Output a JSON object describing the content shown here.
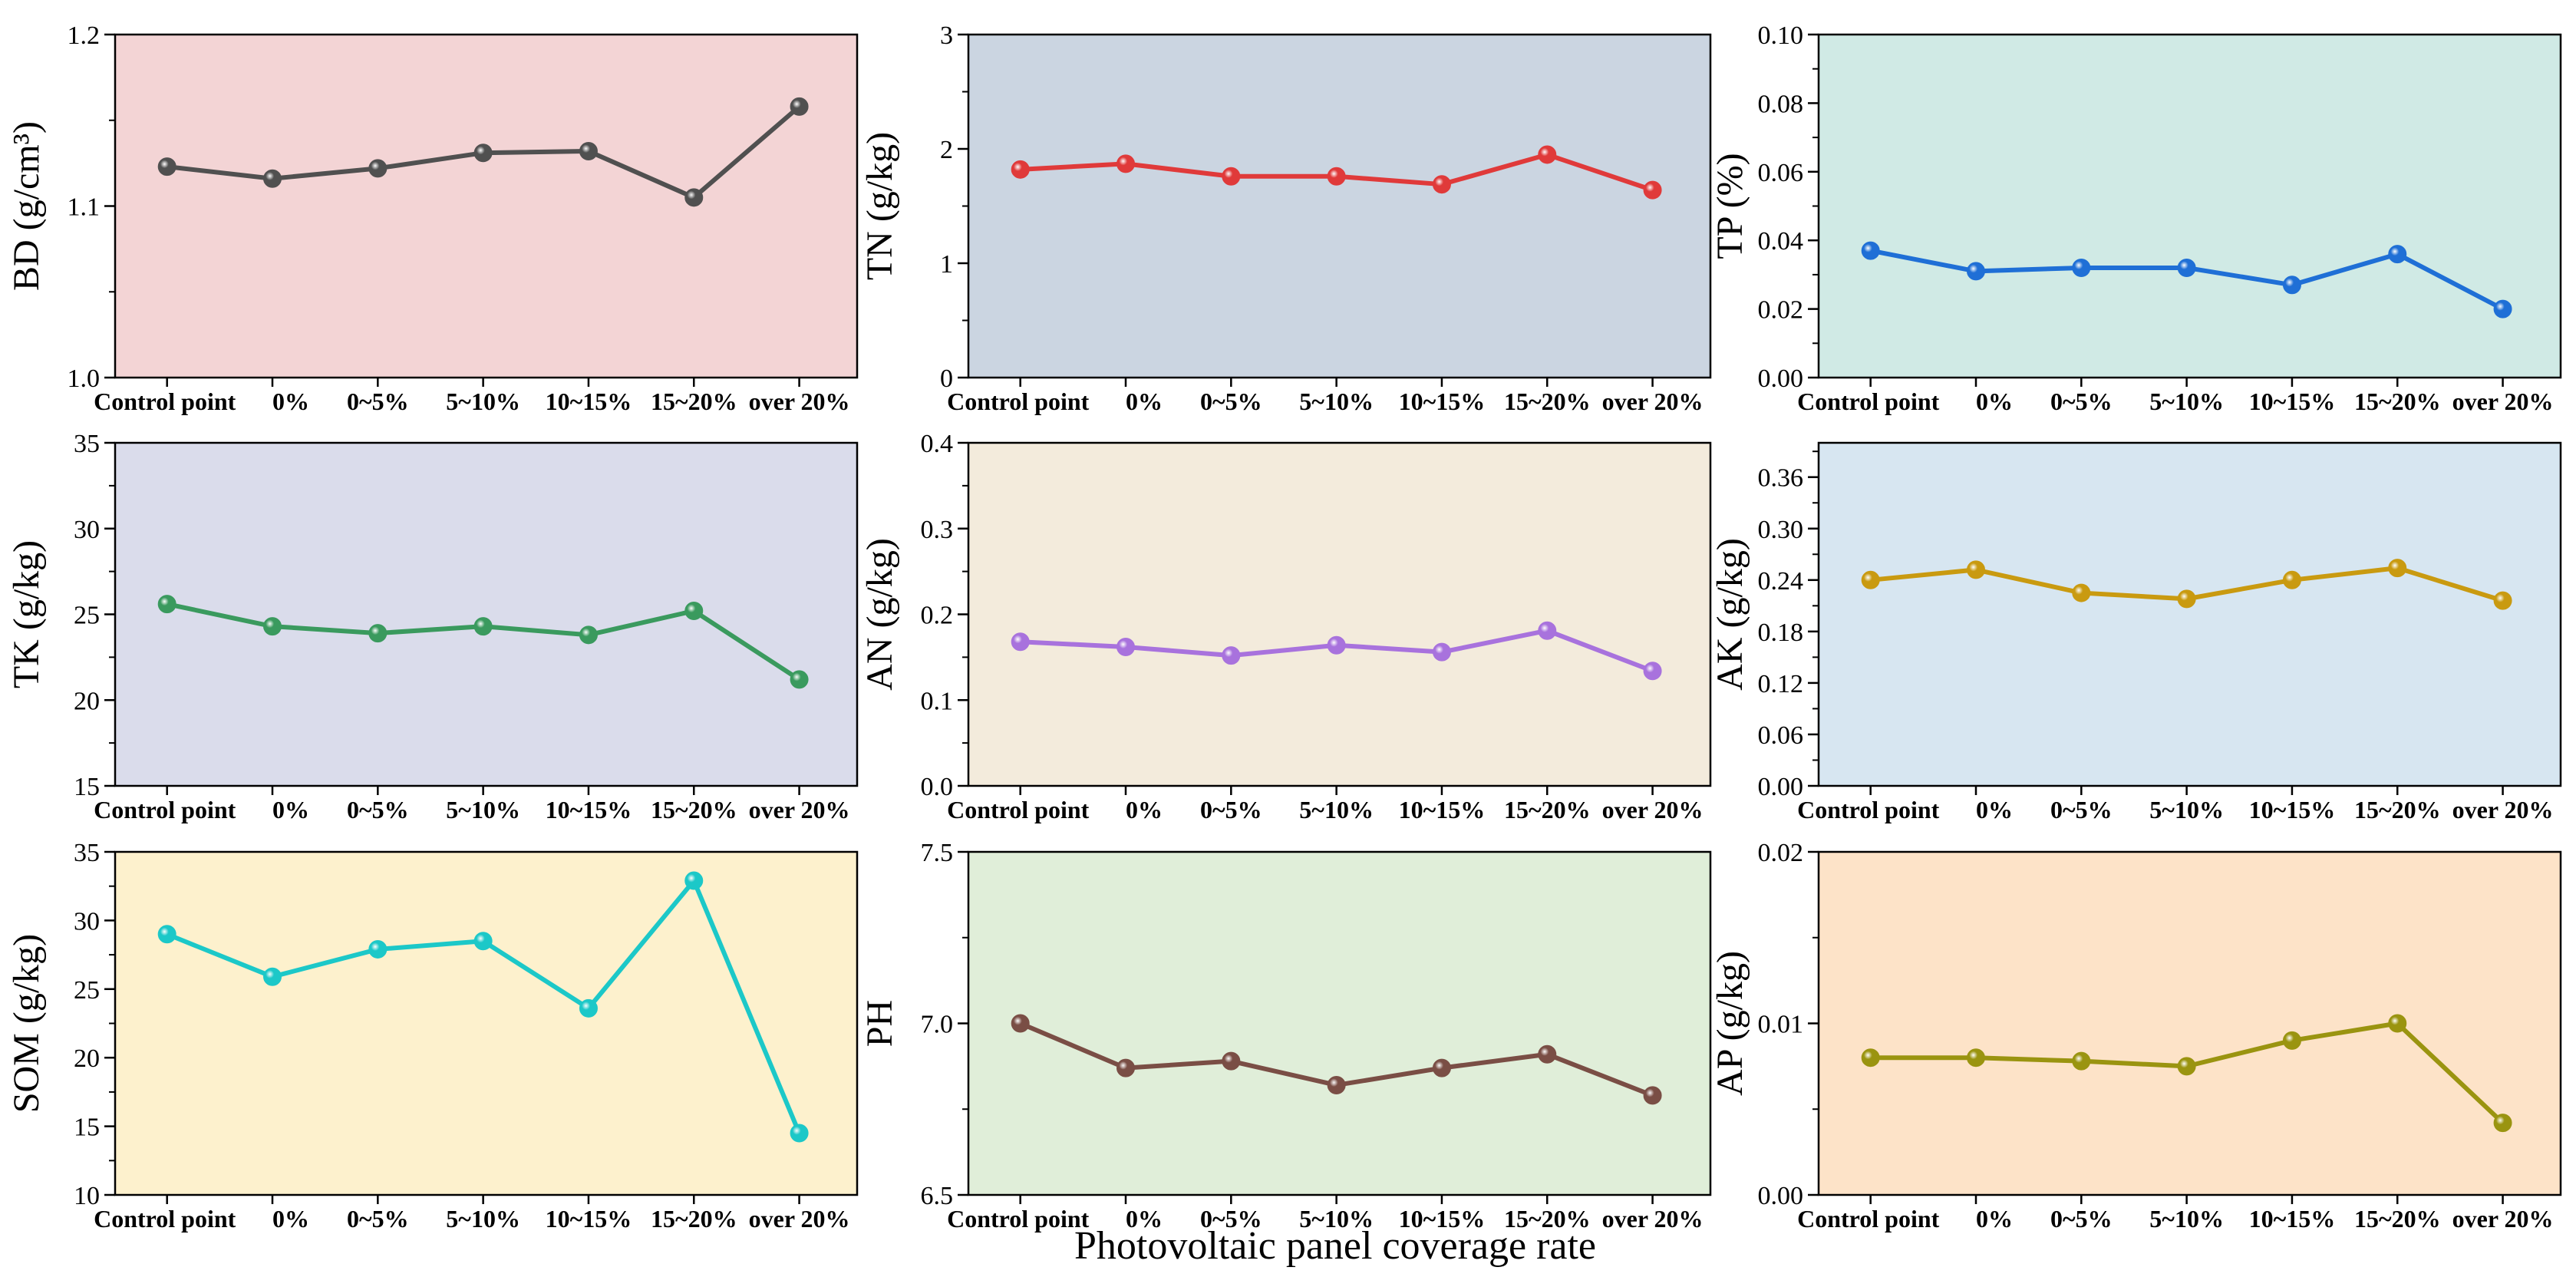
{
  "figure": {
    "xlabel": "Photovoltaic panel coverage rate"
  },
  "chart_data": [
    {
      "type": "line",
      "id": "bd",
      "ylabel": "BD (g/cm³)",
      "bg": "#f3d4d5",
      "color": "#505050",
      "categories": [
        "Control point",
        "0%",
        "0~5%",
        "5~10%",
        "10~15%",
        "15~20%",
        "over 20%"
      ],
      "values": [
        1.123,
        1.116,
        1.122,
        1.131,
        1.132,
        1.105,
        1.158
      ],
      "ylim": [
        1.0,
        1.2
      ],
      "yticks": [
        {
          "v": 1.0,
          "label": "1.0"
        },
        {
          "v": 1.1,
          "label": "1.1"
        },
        {
          "v": 1.2,
          "label": "1.2"
        }
      ],
      "minor": [
        1.05,
        1.15
      ]
    },
    {
      "type": "line",
      "id": "tn",
      "ylabel": "TN (g/kg)",
      "bg": "#cbd5e1",
      "color": "#e03a3a",
      "categories": [
        "Control point",
        "0%",
        "0~5%",
        "5~10%",
        "10~15%",
        "15~20%",
        "over 20%"
      ],
      "values": [
        1.82,
        1.87,
        1.76,
        1.76,
        1.69,
        1.95,
        1.64
      ],
      "ylim": [
        0,
        3
      ],
      "yticks": [
        {
          "v": 0,
          "label": "0"
        },
        {
          "v": 1,
          "label": "1"
        },
        {
          "v": 2,
          "label": "2"
        },
        {
          "v": 3,
          "label": "3"
        }
      ],
      "minor": [
        0.5,
        1.5,
        2.5
      ]
    },
    {
      "type": "line",
      "id": "tp",
      "ylabel": "TP (%)",
      "bg": "#d0eae5",
      "color": "#1f6fd6",
      "categories": [
        "Control point",
        "0%",
        "0~5%",
        "5~10%",
        "10~15%",
        "15~20%",
        "over 20%"
      ],
      "values": [
        0.037,
        0.031,
        0.032,
        0.032,
        0.027,
        0.036,
        0.02
      ],
      "ylim": [
        0,
        0.1
      ],
      "yticks": [
        {
          "v": 0.0,
          "label": "0.00"
        },
        {
          "v": 0.02,
          "label": "0.02"
        },
        {
          "v": 0.04,
          "label": "0.04"
        },
        {
          "v": 0.06,
          "label": "0.06"
        },
        {
          "v": 0.08,
          "label": "0.08"
        },
        {
          "v": 0.1,
          "label": "0.10"
        }
      ],
      "minor": [
        0.01,
        0.03,
        0.05,
        0.07,
        0.09
      ]
    },
    {
      "type": "line",
      "id": "tk",
      "ylabel": "TK (g/kg)",
      "bg": "#dadceb",
      "color": "#3a9a5e",
      "categories": [
        "Control point",
        "0%",
        "0~5%",
        "5~10%",
        "10~15%",
        "15~20%",
        "over 20%"
      ],
      "values": [
        25.6,
        24.3,
        23.9,
        24.3,
        23.8,
        25.2,
        21.2
      ],
      "ylim": [
        15,
        35
      ],
      "yticks": [
        {
          "v": 15,
          "label": "15"
        },
        {
          "v": 20,
          "label": "20"
        },
        {
          "v": 25,
          "label": "25"
        },
        {
          "v": 30,
          "label": "30"
        },
        {
          "v": 35,
          "label": "35"
        }
      ],
      "minor": [
        17.5,
        22.5,
        27.5,
        32.5
      ]
    },
    {
      "type": "line",
      "id": "an",
      "ylabel": "AN (g/kg)",
      "bg": "#f3ebdc",
      "color": "#a872dd",
      "categories": [
        "Control point",
        "0%",
        "0~5%",
        "5~10%",
        "10~15%",
        "15~20%",
        "over 20%"
      ],
      "values": [
        0.168,
        0.162,
        0.152,
        0.164,
        0.156,
        0.181,
        0.134
      ],
      "ylim": [
        0,
        0.4
      ],
      "yticks": [
        {
          "v": 0,
          "label": "0.0"
        },
        {
          "v": 0.1,
          "label": "0.1"
        },
        {
          "v": 0.2,
          "label": "0.2"
        },
        {
          "v": 0.3,
          "label": "0.3"
        },
        {
          "v": 0.4,
          "label": "0.4"
        }
      ],
      "minor": [
        0.05,
        0.15,
        0.25,
        0.35
      ]
    },
    {
      "type": "line",
      "id": "ak",
      "ylabel": "AK (g/kg)",
      "bg": "#d7e6f1",
      "color": "#c99a10",
      "categories": [
        "Control point",
        "0%",
        "0~5%",
        "5~10%",
        "10~15%",
        "15~20%",
        "over 20%"
      ],
      "values": [
        0.24,
        0.252,
        0.225,
        0.218,
        0.24,
        0.254,
        0.216
      ],
      "ylim": [
        0,
        0.4
      ],
      "yticks": [
        {
          "v": 0,
          "label": "0.00"
        },
        {
          "v": 0.06,
          "label": "0.06"
        },
        {
          "v": 0.12,
          "label": "0.12"
        },
        {
          "v": 0.18,
          "label": "0.18"
        },
        {
          "v": 0.24,
          "label": "0.24"
        },
        {
          "v": 0.3,
          "label": "0.30"
        },
        {
          "v": 0.36,
          "label": "0.36"
        }
      ],
      "minor": [
        0.03,
        0.09,
        0.15,
        0.21,
        0.27,
        0.33,
        0.39
      ]
    },
    {
      "type": "line",
      "id": "som",
      "ylabel": "SOM (g/kg)",
      "bg": "#fdf1cd",
      "color": "#1cc8c8",
      "categories": [
        "Control point",
        "0%",
        "0~5%",
        "5~10%",
        "10~15%",
        "15~20%",
        "over 20%"
      ],
      "values": [
        29.0,
        25.9,
        27.9,
        28.5,
        23.6,
        32.9,
        14.5
      ],
      "ylim": [
        10,
        35
      ],
      "yticks": [
        {
          "v": 10,
          "label": "10"
        },
        {
          "v": 15,
          "label": "15"
        },
        {
          "v": 20,
          "label": "20"
        },
        {
          "v": 25,
          "label": "25"
        },
        {
          "v": 30,
          "label": "30"
        },
        {
          "v": 35,
          "label": "35"
        }
      ],
      "minor": [
        12.5,
        17.5,
        22.5,
        27.5,
        32.5
      ]
    },
    {
      "type": "line",
      "id": "ph",
      "ylabel": "PH",
      "bg": "#e0eed9",
      "color": "#7a4e45",
      "categories": [
        "Control point",
        "0%",
        "0~5%",
        "5~10%",
        "10~15%",
        "15~20%",
        "over 20%"
      ],
      "values": [
        7.0,
        6.87,
        6.89,
        6.82,
        6.87,
        6.91,
        6.79
      ],
      "ylim": [
        6.5,
        7.5
      ],
      "yticks": [
        {
          "v": 6.5,
          "label": "6.5"
        },
        {
          "v": 7.0,
          "label": "7.0"
        },
        {
          "v": 7.5,
          "label": "7.5"
        }
      ],
      "minor": [
        6.75,
        7.25
      ]
    },
    {
      "type": "line",
      "id": "ap",
      "ylabel": "AP (g/kg)",
      "bg": "#fde3c8",
      "color": "#9a9410",
      "categories": [
        "Control point",
        "0%",
        "0~5%",
        "5~10%",
        "10~15%",
        "15~20%",
        "over 20%"
      ],
      "values": [
        0.008,
        0.008,
        0.0078,
        0.0075,
        0.009,
        0.01,
        0.0042
      ],
      "ylim": [
        0,
        0.02
      ],
      "yticks": [
        {
          "v": 0,
          "label": "0.00"
        },
        {
          "v": 0.01,
          "label": "0.01"
        },
        {
          "v": 0.02,
          "label": "0.02"
        }
      ],
      "minor": [
        0.005,
        0.015
      ]
    }
  ]
}
